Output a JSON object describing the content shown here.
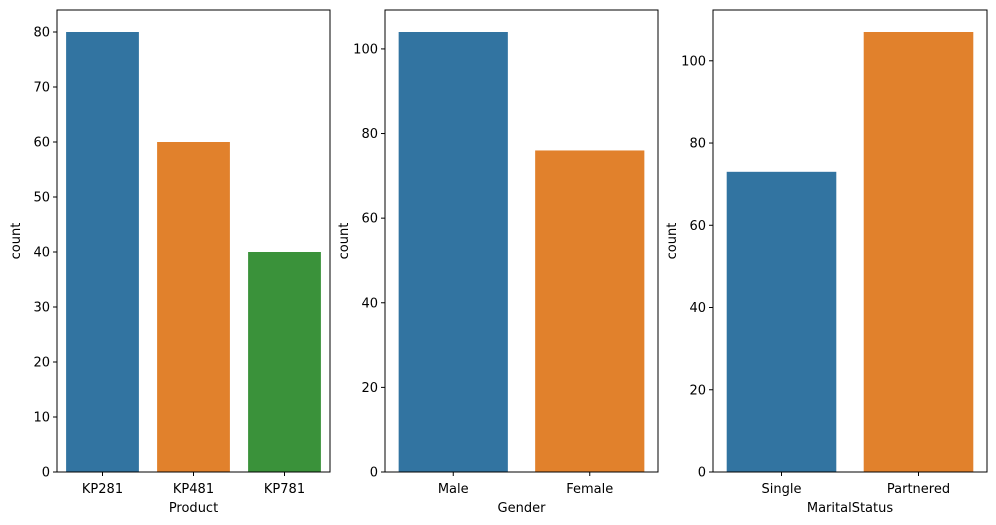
{
  "chart_data": [
    {
      "type": "bar",
      "categories": [
        "KP281",
        "KP481",
        "KP781"
      ],
      "values": [
        80,
        60,
        40
      ],
      "colors": [
        "#3274a1",
        "#e1812c",
        "#3a923a"
      ],
      "xlabel": "Product",
      "ylabel": "count",
      "ylim": [
        0,
        84
      ],
      "yticks": [
        0,
        10,
        20,
        30,
        40,
        50,
        60,
        70,
        80
      ],
      "grid": false
    },
    {
      "type": "bar",
      "categories": [
        "Male",
        "Female"
      ],
      "values": [
        104,
        76
      ],
      "colors": [
        "#3274a1",
        "#e1812c"
      ],
      "xlabel": "Gender",
      "ylabel": "count",
      "ylim": [
        0,
        109.2
      ],
      "yticks": [
        0,
        20,
        40,
        60,
        80,
        100
      ],
      "grid": false
    },
    {
      "type": "bar",
      "categories": [
        "Single",
        "Partnered"
      ],
      "values": [
        73,
        107
      ],
      "colors": [
        "#3274a1",
        "#e1812c"
      ],
      "xlabel": "MaritalStatus",
      "ylabel": "count",
      "ylim": [
        0,
        112.35
      ],
      "yticks": [
        0,
        20,
        40,
        60,
        80,
        100
      ],
      "grid": false
    }
  ]
}
